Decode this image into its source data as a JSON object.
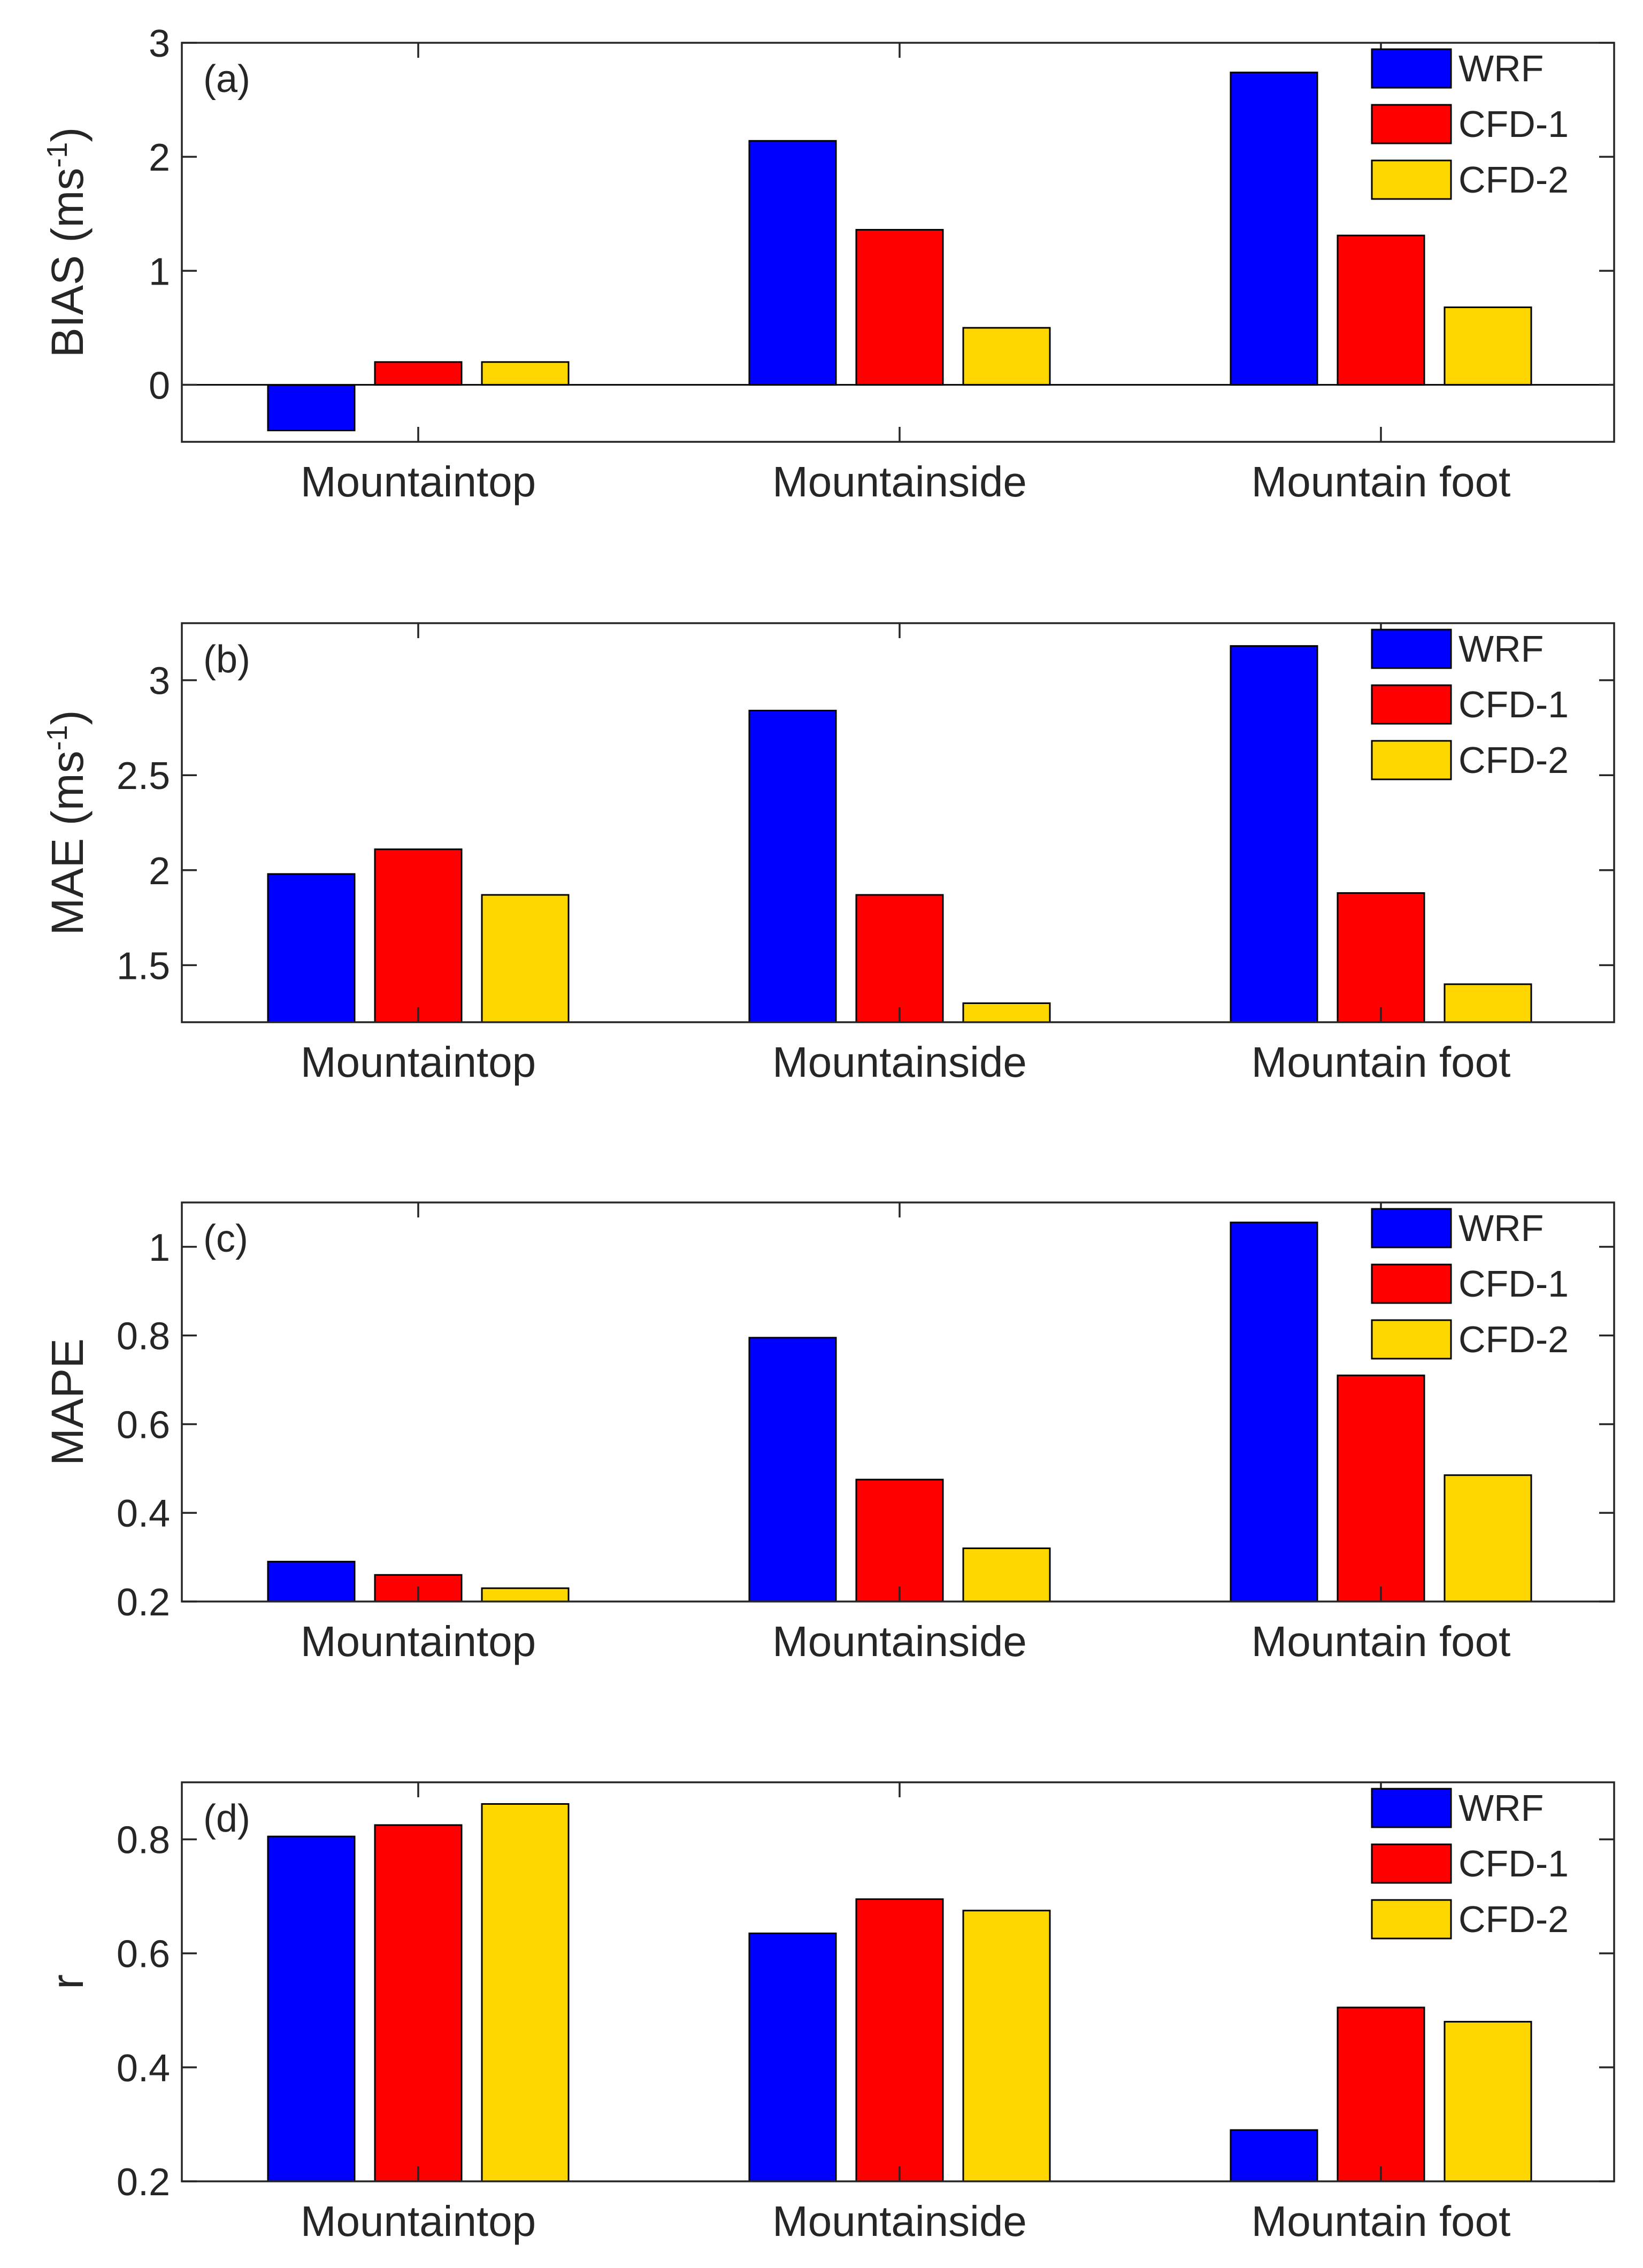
{
  "series_colors": {
    "WRF": "#0000FF",
    "CFD-1": "#FF0000",
    "CFD-2": "#FFD700"
  },
  "chart_data": [
    {
      "type": "bar",
      "panel": "(a)",
      "ylabel_main": "BIAS (ms",
      "ylabel_sup": "-1",
      "ylabel_close": ")",
      "categories": [
        "Mountaintop",
        "Mountainside",
        "Mountain foot"
      ],
      "ylim": [
        -0.5,
        3
      ],
      "yticks": [
        0,
        1,
        2,
        3
      ],
      "ytick_labels": [
        "0",
        "1",
        "2",
        "3"
      ],
      "zero_line": true,
      "legend": [
        "WRF",
        "CFD-1",
        "CFD-2"
      ],
      "legend_position": "top-right",
      "series": [
        {
          "name": "WRF",
          "values": [
            -0.4,
            2.14,
            2.74
          ]
        },
        {
          "name": "CFD-1",
          "values": [
            0.2,
            1.36,
            1.31
          ]
        },
        {
          "name": "CFD-2",
          "values": [
            0.2,
            0.5,
            0.68
          ]
        }
      ]
    },
    {
      "type": "bar",
      "panel": "(b)",
      "ylabel_main": "MAE (ms",
      "ylabel_sup": "-1",
      "ylabel_close": ")",
      "categories": [
        "Mountaintop",
        "Mountainside",
        "Mountain foot"
      ],
      "ylim": [
        1.2,
        3.3
      ],
      "yticks": [
        1.5,
        2,
        2.5,
        3
      ],
      "ytick_labels": [
        "1.5",
        "2",
        "2.5",
        "3"
      ],
      "zero_line": false,
      "legend": [
        "WRF",
        "CFD-1",
        "CFD-2"
      ],
      "legend_position": "top-right",
      "series": [
        {
          "name": "WRF",
          "values": [
            1.98,
            2.84,
            3.18
          ]
        },
        {
          "name": "CFD-1",
          "values": [
            2.11,
            1.87,
            1.88
          ]
        },
        {
          "name": "CFD-2",
          "values": [
            1.87,
            1.3,
            1.4
          ]
        }
      ]
    },
    {
      "type": "bar",
      "panel": "(c)",
      "ylabel_main": "MAPE",
      "ylabel_sup": "",
      "ylabel_close": "",
      "categories": [
        "Mountaintop",
        "Mountainside",
        "Mountain foot"
      ],
      "ylim": [
        0.2,
        1.1
      ],
      "yticks": [
        0.2,
        0.4,
        0.6,
        0.8,
        1
      ],
      "ytick_labels": [
        "0.2",
        "0.4",
        "0.6",
        "0.8",
        "1"
      ],
      "zero_line": false,
      "legend": [
        "WRF",
        "CFD-1",
        "CFD-2"
      ],
      "legend_position": "top-right",
      "series": [
        {
          "name": "WRF",
          "values": [
            0.29,
            0.795,
            1.055
          ]
        },
        {
          "name": "CFD-1",
          "values": [
            0.26,
            0.475,
            0.71
          ]
        },
        {
          "name": "CFD-2",
          "values": [
            0.23,
            0.32,
            0.485
          ]
        }
      ]
    },
    {
      "type": "bar",
      "panel": "(d)",
      "ylabel_main": "r",
      "ylabel_sup": "",
      "ylabel_close": "",
      "categories": [
        "Mountaintop",
        "Mountainside",
        "Mountain foot"
      ],
      "ylim": [
        0.2,
        0.9
      ],
      "yticks": [
        0.2,
        0.4,
        0.6,
        0.8
      ],
      "ytick_labels": [
        "0.2",
        "0.4",
        "0.6",
        "0.8"
      ],
      "zero_line": false,
      "legend": [
        "WRF",
        "CFD-1",
        "CFD-2"
      ],
      "legend_position": "top-right",
      "series": [
        {
          "name": "WRF",
          "values": [
            0.805,
            0.635,
            0.29
          ]
        },
        {
          "name": "CFD-1",
          "values": [
            0.825,
            0.695,
            0.505
          ]
        },
        {
          "name": "CFD-2",
          "values": [
            0.862,
            0.675,
            0.48
          ]
        }
      ]
    }
  ]
}
